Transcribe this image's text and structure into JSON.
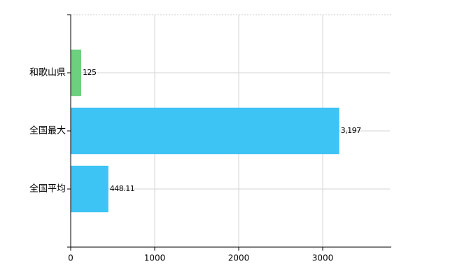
{
  "chart_data": {
    "type": "hbar",
    "categories": [
      "和歌山県",
      "全国最大",
      "全国平均"
    ],
    "values": [
      125,
      3197,
      448.11
    ],
    "value_labels": [
      "125",
      "3,197",
      "448.11"
    ],
    "colors": [
      "#6dd07f",
      "#3ec3f5",
      "#3ec3f5"
    ],
    "xlim": [
      0,
      3800
    ],
    "xticks": [
      0,
      1000,
      2000,
      3000
    ],
    "grid": true
  }
}
